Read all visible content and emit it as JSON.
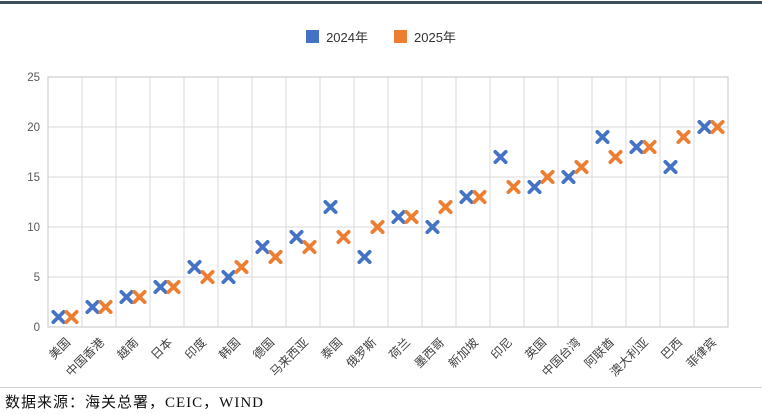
{
  "chart_data": {
    "type": "scatter",
    "marker": "x",
    "title": "",
    "xlabel": "",
    "ylabel": "",
    "categories": [
      "美国",
      "中国香港",
      "越南",
      "日本",
      "印度",
      "韩国",
      "德国",
      "马来西亚",
      "泰国",
      "俄罗斯",
      "荷兰",
      "墨西哥",
      "新加坡",
      "印尼",
      "英国",
      "中国台湾",
      "阿联酋",
      "澳大利亚",
      "巴西",
      "菲律宾"
    ],
    "series": [
      {
        "name": "2024年",
        "color": "#4472C4",
        "values": [
          1,
          2,
          3,
          4,
          6,
          5,
          8,
          9,
          12,
          7,
          11,
          10,
          13,
          17,
          14,
          15,
          19,
          18,
          16,
          20
        ]
      },
      {
        "name": "2025年",
        "color": "#ED7D31",
        "values": [
          1,
          2,
          3,
          4,
          5,
          6,
          7,
          8,
          9,
          10,
          11,
          12,
          13,
          14,
          15,
          16,
          17,
          18,
          19,
          20
        ]
      }
    ],
    "ylim": [
      0,
      25
    ],
    "yticks": [
      0,
      5,
      10,
      15,
      20,
      25
    ],
    "grid": "both",
    "legend_position": "top-center"
  },
  "source_note": "数据来源：海关总署，CEIC，WIND",
  "colors": {
    "top_bar": "#3e4f5c",
    "grid": "#d9d9d9",
    "plot_border": "#c6c6c6",
    "axis_text": "#595959",
    "category_text": "#404040"
  }
}
